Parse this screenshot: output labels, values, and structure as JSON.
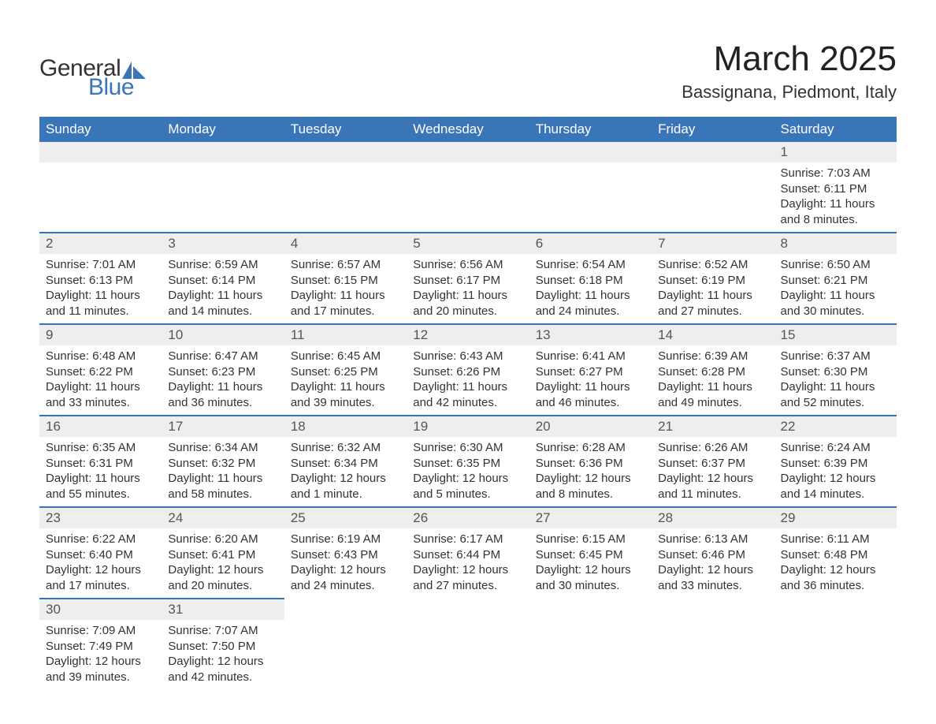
{
  "logo": {
    "general": "General",
    "blue": "Blue"
  },
  "title": "March 2025",
  "location": "Bassignana, Piedmont, Italy",
  "colors": {
    "header_bg": "#3a75b8",
    "header_text": "#ffffff",
    "daynum_bg": "#eeeeee",
    "row_border": "#3a75b8",
    "body_text": "#333333",
    "page_bg": "#ffffff"
  },
  "weekdays": [
    "Sunday",
    "Monday",
    "Tuesday",
    "Wednesday",
    "Thursday",
    "Friday",
    "Saturday"
  ],
  "weeks": [
    [
      null,
      null,
      null,
      null,
      null,
      null,
      {
        "n": "1",
        "sunrise": "Sunrise: 7:03 AM",
        "sunset": "Sunset: 6:11 PM",
        "daylight": "Daylight: 11 hours and 8 minutes."
      }
    ],
    [
      {
        "n": "2",
        "sunrise": "Sunrise: 7:01 AM",
        "sunset": "Sunset: 6:13 PM",
        "daylight": "Daylight: 11 hours and 11 minutes."
      },
      {
        "n": "3",
        "sunrise": "Sunrise: 6:59 AM",
        "sunset": "Sunset: 6:14 PM",
        "daylight": "Daylight: 11 hours and 14 minutes."
      },
      {
        "n": "4",
        "sunrise": "Sunrise: 6:57 AM",
        "sunset": "Sunset: 6:15 PM",
        "daylight": "Daylight: 11 hours and 17 minutes."
      },
      {
        "n": "5",
        "sunrise": "Sunrise: 6:56 AM",
        "sunset": "Sunset: 6:17 PM",
        "daylight": "Daylight: 11 hours and 20 minutes."
      },
      {
        "n": "6",
        "sunrise": "Sunrise: 6:54 AM",
        "sunset": "Sunset: 6:18 PM",
        "daylight": "Daylight: 11 hours and 24 minutes."
      },
      {
        "n": "7",
        "sunrise": "Sunrise: 6:52 AM",
        "sunset": "Sunset: 6:19 PM",
        "daylight": "Daylight: 11 hours and 27 minutes."
      },
      {
        "n": "8",
        "sunrise": "Sunrise: 6:50 AM",
        "sunset": "Sunset: 6:21 PM",
        "daylight": "Daylight: 11 hours and 30 minutes."
      }
    ],
    [
      {
        "n": "9",
        "sunrise": "Sunrise: 6:48 AM",
        "sunset": "Sunset: 6:22 PM",
        "daylight": "Daylight: 11 hours and 33 minutes."
      },
      {
        "n": "10",
        "sunrise": "Sunrise: 6:47 AM",
        "sunset": "Sunset: 6:23 PM",
        "daylight": "Daylight: 11 hours and 36 minutes."
      },
      {
        "n": "11",
        "sunrise": "Sunrise: 6:45 AM",
        "sunset": "Sunset: 6:25 PM",
        "daylight": "Daylight: 11 hours and 39 minutes."
      },
      {
        "n": "12",
        "sunrise": "Sunrise: 6:43 AM",
        "sunset": "Sunset: 6:26 PM",
        "daylight": "Daylight: 11 hours and 42 minutes."
      },
      {
        "n": "13",
        "sunrise": "Sunrise: 6:41 AM",
        "sunset": "Sunset: 6:27 PM",
        "daylight": "Daylight: 11 hours and 46 minutes."
      },
      {
        "n": "14",
        "sunrise": "Sunrise: 6:39 AM",
        "sunset": "Sunset: 6:28 PM",
        "daylight": "Daylight: 11 hours and 49 minutes."
      },
      {
        "n": "15",
        "sunrise": "Sunrise: 6:37 AM",
        "sunset": "Sunset: 6:30 PM",
        "daylight": "Daylight: 11 hours and 52 minutes."
      }
    ],
    [
      {
        "n": "16",
        "sunrise": "Sunrise: 6:35 AM",
        "sunset": "Sunset: 6:31 PM",
        "daylight": "Daylight: 11 hours and 55 minutes."
      },
      {
        "n": "17",
        "sunrise": "Sunrise: 6:34 AM",
        "sunset": "Sunset: 6:32 PM",
        "daylight": "Daylight: 11 hours and 58 minutes."
      },
      {
        "n": "18",
        "sunrise": "Sunrise: 6:32 AM",
        "sunset": "Sunset: 6:34 PM",
        "daylight": "Daylight: 12 hours and 1 minute."
      },
      {
        "n": "19",
        "sunrise": "Sunrise: 6:30 AM",
        "sunset": "Sunset: 6:35 PM",
        "daylight": "Daylight: 12 hours and 5 minutes."
      },
      {
        "n": "20",
        "sunrise": "Sunrise: 6:28 AM",
        "sunset": "Sunset: 6:36 PM",
        "daylight": "Daylight: 12 hours and 8 minutes."
      },
      {
        "n": "21",
        "sunrise": "Sunrise: 6:26 AM",
        "sunset": "Sunset: 6:37 PM",
        "daylight": "Daylight: 12 hours and 11 minutes."
      },
      {
        "n": "22",
        "sunrise": "Sunrise: 6:24 AM",
        "sunset": "Sunset: 6:39 PM",
        "daylight": "Daylight: 12 hours and 14 minutes."
      }
    ],
    [
      {
        "n": "23",
        "sunrise": "Sunrise: 6:22 AM",
        "sunset": "Sunset: 6:40 PM",
        "daylight": "Daylight: 12 hours and 17 minutes."
      },
      {
        "n": "24",
        "sunrise": "Sunrise: 6:20 AM",
        "sunset": "Sunset: 6:41 PM",
        "daylight": "Daylight: 12 hours and 20 minutes."
      },
      {
        "n": "25",
        "sunrise": "Sunrise: 6:19 AM",
        "sunset": "Sunset: 6:43 PM",
        "daylight": "Daylight: 12 hours and 24 minutes."
      },
      {
        "n": "26",
        "sunrise": "Sunrise: 6:17 AM",
        "sunset": "Sunset: 6:44 PM",
        "daylight": "Daylight: 12 hours and 27 minutes."
      },
      {
        "n": "27",
        "sunrise": "Sunrise: 6:15 AM",
        "sunset": "Sunset: 6:45 PM",
        "daylight": "Daylight: 12 hours and 30 minutes."
      },
      {
        "n": "28",
        "sunrise": "Sunrise: 6:13 AM",
        "sunset": "Sunset: 6:46 PM",
        "daylight": "Daylight: 12 hours and 33 minutes."
      },
      {
        "n": "29",
        "sunrise": "Sunrise: 6:11 AM",
        "sunset": "Sunset: 6:48 PM",
        "daylight": "Daylight: 12 hours and 36 minutes."
      }
    ],
    [
      {
        "n": "30",
        "sunrise": "Sunrise: 7:09 AM",
        "sunset": "Sunset: 7:49 PM",
        "daylight": "Daylight: 12 hours and 39 minutes."
      },
      {
        "n": "31",
        "sunrise": "Sunrise: 7:07 AM",
        "sunset": "Sunset: 7:50 PM",
        "daylight": "Daylight: 12 hours and 42 minutes."
      },
      null,
      null,
      null,
      null,
      null
    ]
  ]
}
